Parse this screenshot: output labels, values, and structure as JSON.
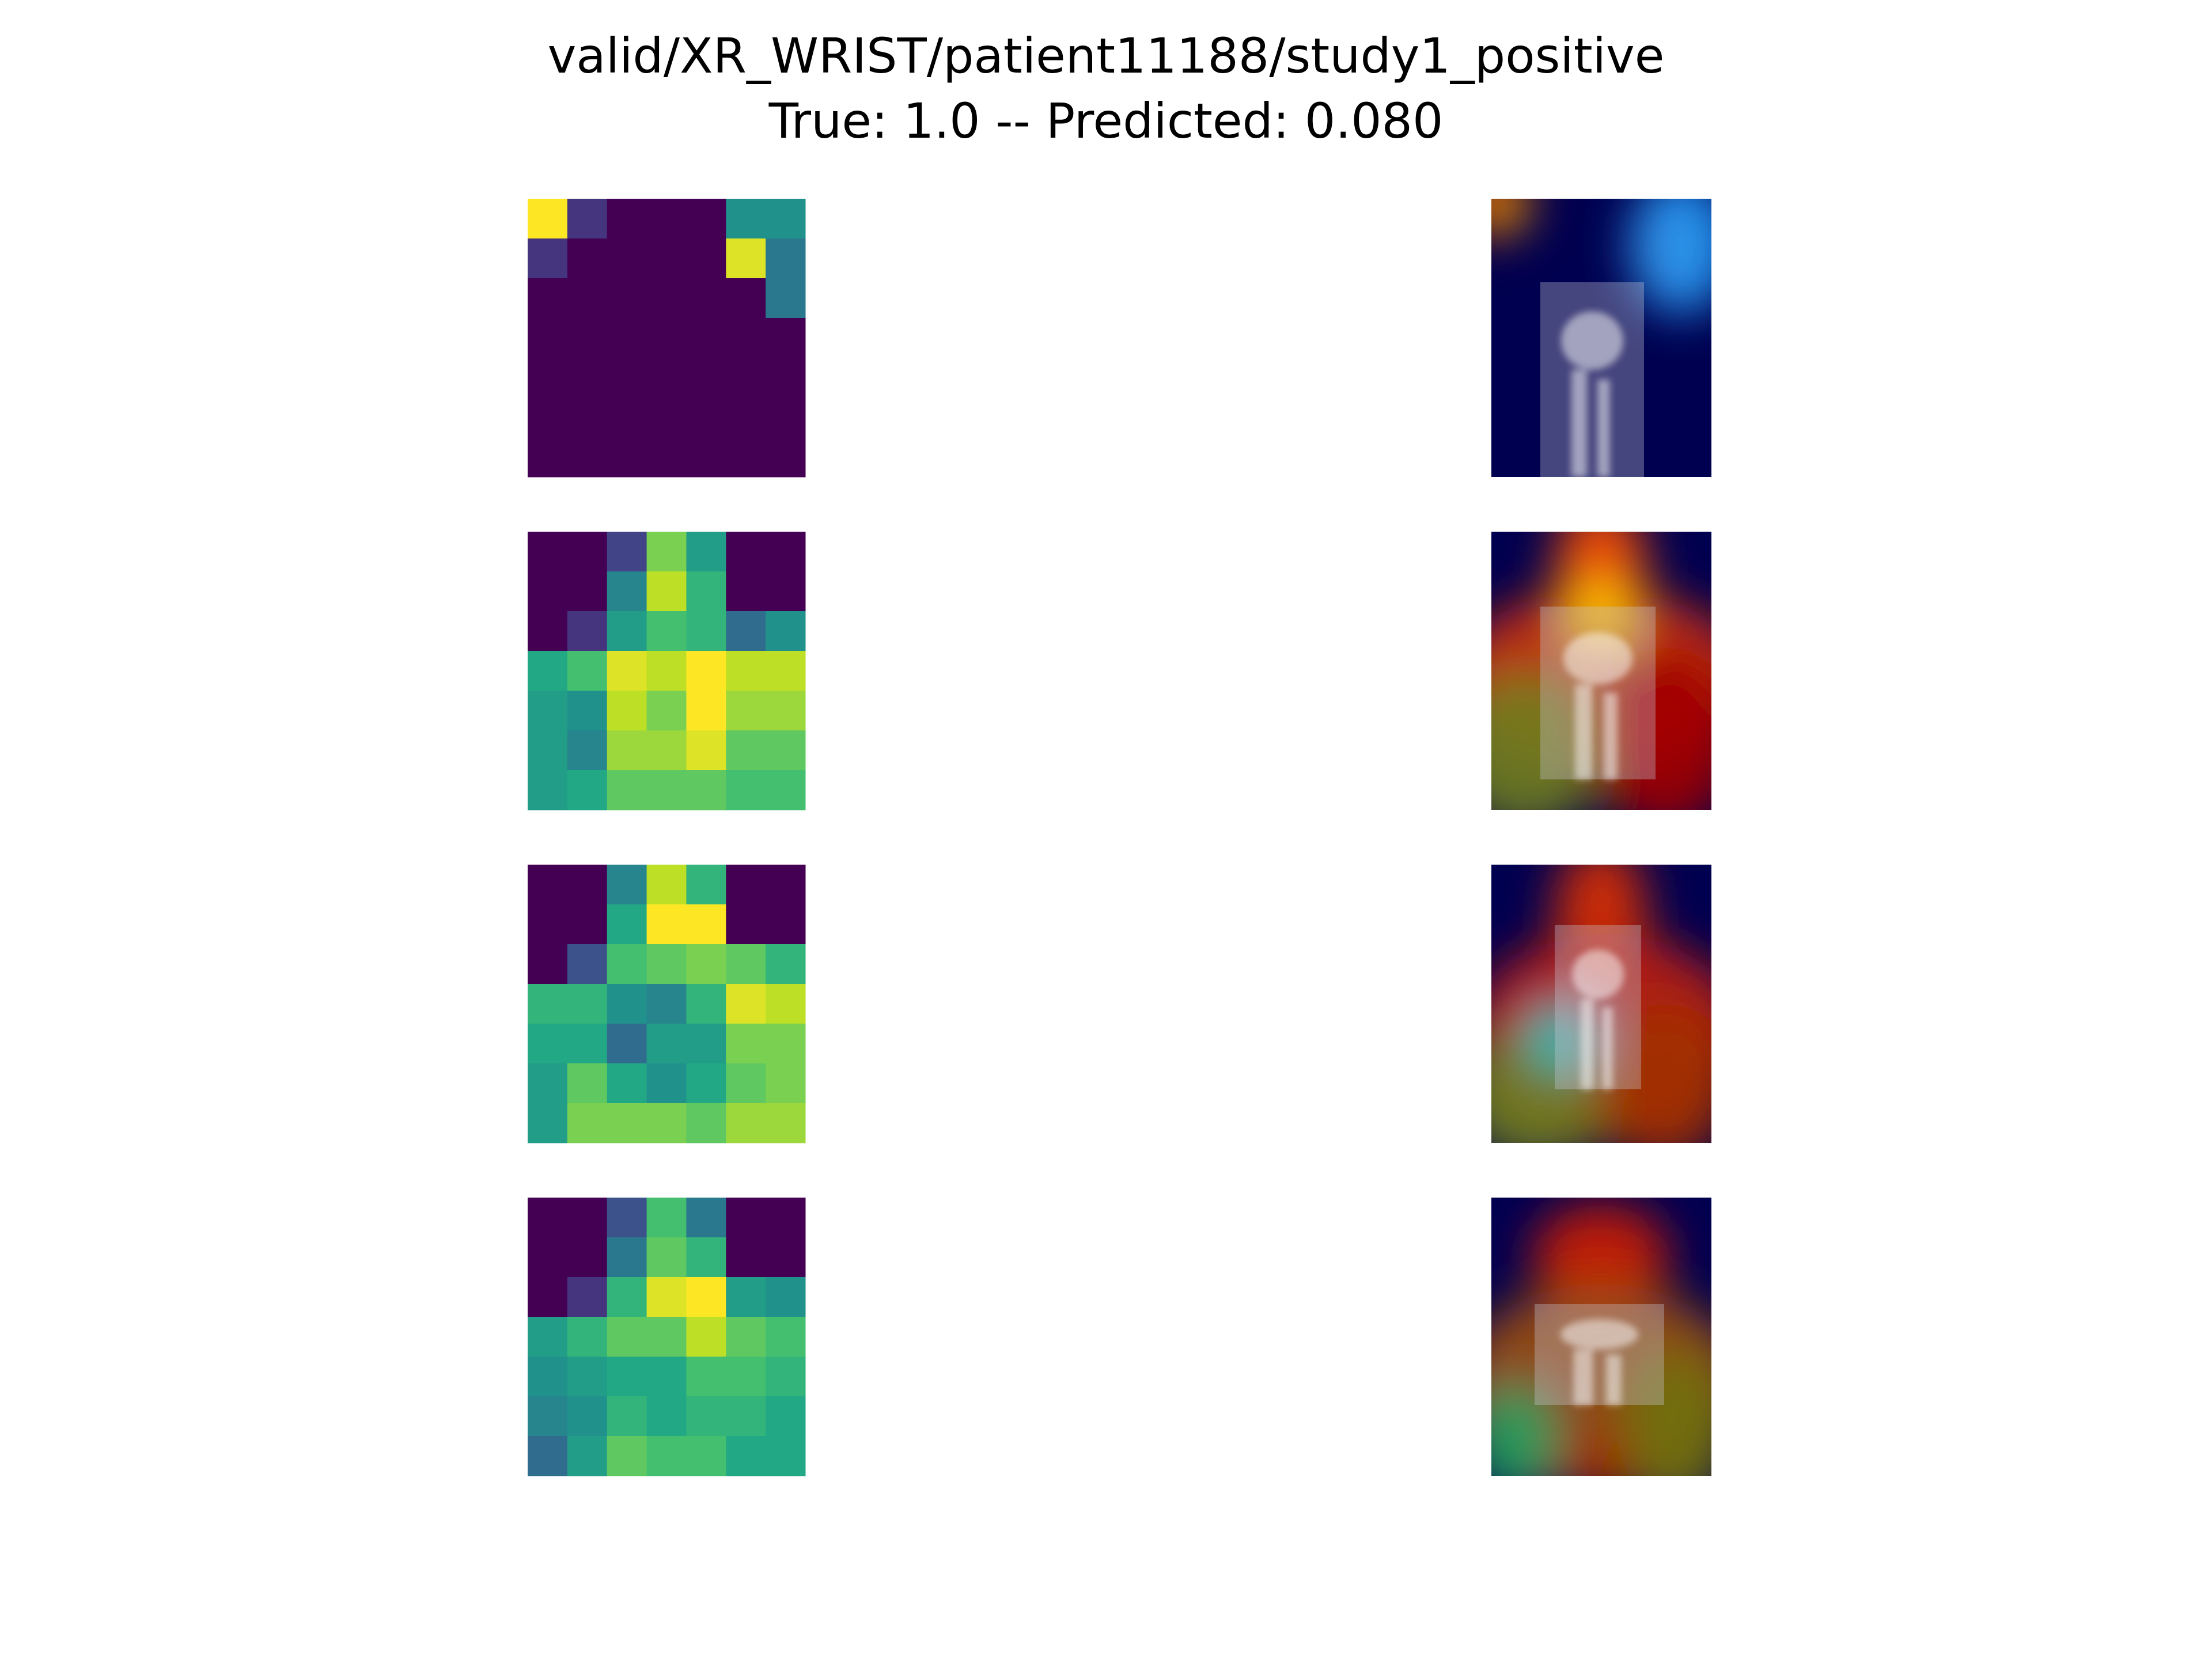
{
  "title_lines": [
    "valid/XR_WRIST/patient11188/study1_positive",
    "True: 1.0 -- Predicted: 0.080"
  ],
  "heatmaps": [
    {
      "cells": [
        [
          1.0,
          0.15,
          0,
          0,
          0,
          0.5,
          0.5
        ],
        [
          0.15,
          0,
          0,
          0,
          0,
          0.95,
          0.4
        ],
        [
          0,
          0,
          0,
          0,
          0,
          0,
          0.4
        ],
        [
          0,
          0,
          0,
          0,
          0,
          0,
          0
        ],
        [
          0,
          0,
          0,
          0,
          0,
          0,
          0
        ],
        [
          0,
          0,
          0,
          0,
          0,
          0,
          0
        ],
        [
          0,
          0,
          0,
          0,
          0,
          0,
          0
        ]
      ]
    },
    {
      "cells": [
        [
          0,
          0,
          0.2,
          0.8,
          0.55,
          0,
          0
        ],
        [
          0,
          0,
          0.45,
          0.9,
          0.65,
          0,
          0
        ],
        [
          0,
          0.15,
          0.55,
          0.7,
          0.65,
          0.35,
          0.5
        ],
        [
          0.6,
          0.7,
          0.95,
          0.9,
          1.0,
          0.9,
          0.9
        ],
        [
          0.55,
          0.5,
          0.9,
          0.8,
          1.0,
          0.85,
          0.85
        ],
        [
          0.55,
          0.45,
          0.85,
          0.85,
          0.95,
          0.75,
          0.75
        ],
        [
          0.55,
          0.6,
          0.75,
          0.75,
          0.75,
          0.7,
          0.7
        ]
      ]
    },
    {
      "cells": [
        [
          0,
          0,
          0.45,
          0.9,
          0.65,
          0,
          0
        ],
        [
          0,
          0,
          0.6,
          1.0,
          1.0,
          0,
          0
        ],
        [
          0,
          0.25,
          0.7,
          0.75,
          0.8,
          0.75,
          0.65
        ],
        [
          0.65,
          0.65,
          0.5,
          0.45,
          0.65,
          0.95,
          0.9
        ],
        [
          0.6,
          0.6,
          0.35,
          0.55,
          0.55,
          0.8,
          0.8
        ],
        [
          0.55,
          0.75,
          0.6,
          0.5,
          0.6,
          0.75,
          0.8
        ],
        [
          0.55,
          0.8,
          0.8,
          0.8,
          0.75,
          0.85,
          0.85
        ]
      ]
    },
    {
      "cells": [
        [
          0,
          0,
          0.25,
          0.7,
          0.4,
          0,
          0
        ],
        [
          0,
          0,
          0.4,
          0.75,
          0.65,
          0,
          0
        ],
        [
          0,
          0.15,
          0.65,
          0.95,
          1.0,
          0.55,
          0.5
        ],
        [
          0.55,
          0.65,
          0.75,
          0.75,
          0.9,
          0.75,
          0.7
        ],
        [
          0.5,
          0.55,
          0.6,
          0.6,
          0.7,
          0.7,
          0.65
        ],
        [
          0.45,
          0.5,
          0.65,
          0.6,
          0.65,
          0.65,
          0.6
        ],
        [
          0.35,
          0.55,
          0.75,
          0.7,
          0.7,
          0.6,
          0.6
        ]
      ]
    }
  ]
}
